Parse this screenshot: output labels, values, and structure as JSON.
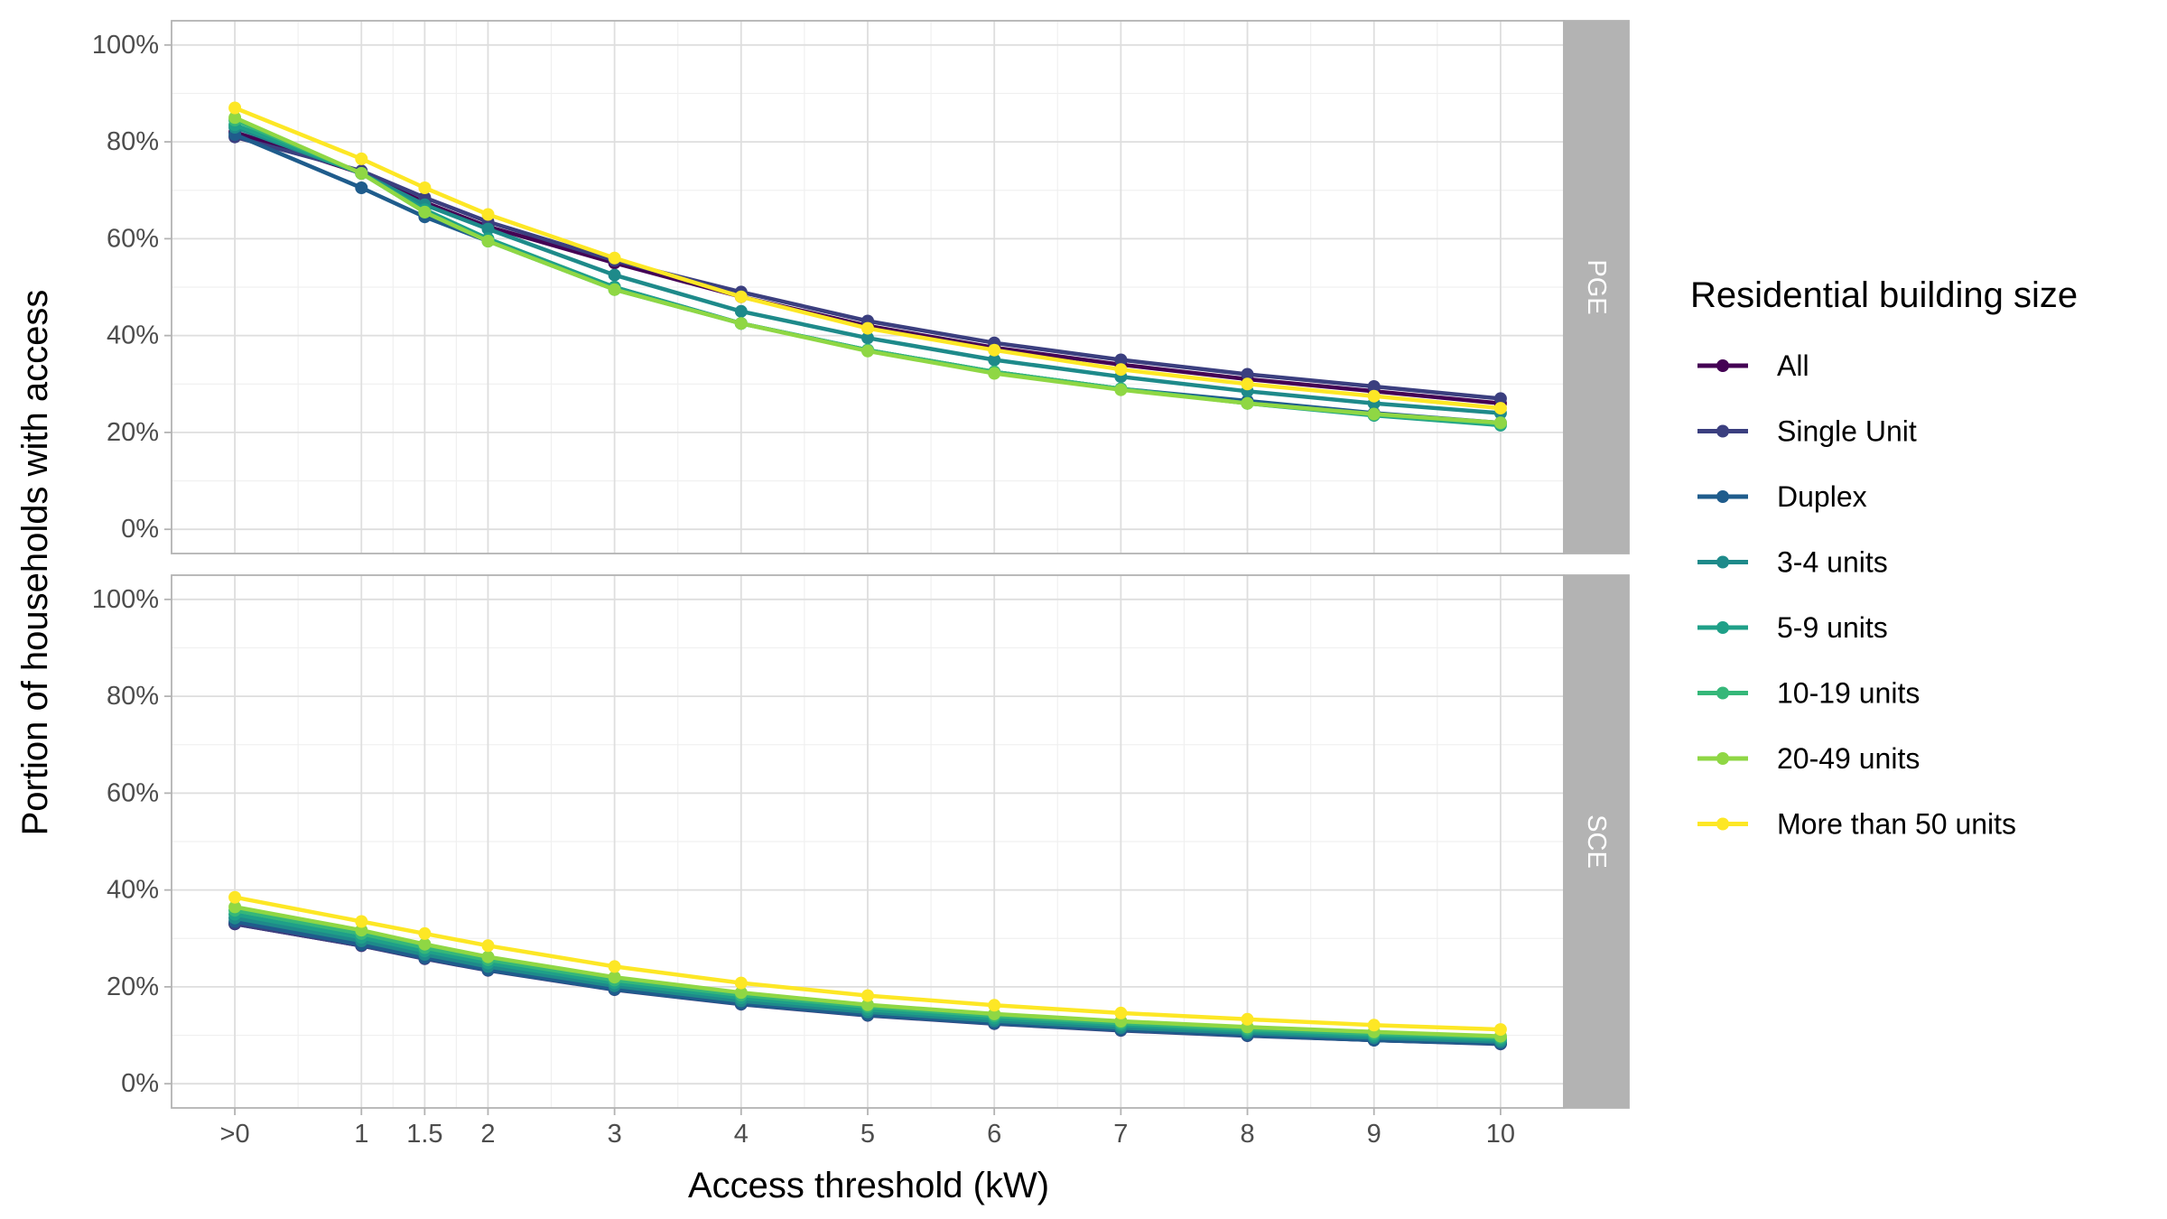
{
  "chart_data": {
    "type": "line",
    "xlabel": "Access threshold (kW)",
    "ylabel": "Portion of households with access",
    "x": [
      0,
      1,
      1.5,
      2,
      3,
      4,
      5,
      6,
      7,
      8,
      9,
      10
    ],
    "x_tick_labels": [
      ">0",
      "1",
      "1.5",
      "2",
      "3",
      "4",
      "5",
      "6",
      "7",
      "8",
      "9",
      "10"
    ],
    "y_tick_labels": [
      "0%",
      "20%",
      "40%",
      "60%",
      "80%",
      "100%"
    ],
    "ylim": [
      0,
      1
    ],
    "grid": true,
    "legend": {
      "title": "Residential building size",
      "placement": "right"
    },
    "facets": [
      {
        "name": "PGE",
        "series": [
          {
            "name": "All",
            "color": "#440154",
            "values": [
              0.82,
              0.735,
              0.675,
              0.625,
              0.55,
              0.48,
              0.42,
              0.375,
              0.34,
              0.31,
              0.285,
              0.26
            ]
          },
          {
            "name": "Single Unit",
            "color": "#3b3f7f",
            "values": [
              0.81,
              0.74,
              0.685,
              0.635,
              0.555,
              0.49,
              0.43,
              0.385,
              0.35,
              0.32,
              0.295,
              0.27
            ]
          },
          {
            "name": "Duplex",
            "color": "#1f5c8c",
            "values": [
              0.815,
              0.705,
              0.645,
              0.595,
              0.5,
              0.425,
              0.37,
              0.325,
              0.29,
              0.265,
              0.24,
              0.22
            ]
          },
          {
            "name": "3-4 units",
            "color": "#1e8a8a",
            "values": [
              0.83,
              0.735,
              0.67,
              0.62,
              0.525,
              0.45,
              0.395,
              0.35,
              0.315,
              0.285,
              0.26,
              0.24
            ]
          },
          {
            "name": "5-9 units",
            "color": "#1fa088",
            "values": [
              0.835,
              0.735,
              0.66,
              0.6,
              0.5,
              0.425,
              0.37,
              0.325,
              0.29,
              0.26,
              0.235,
              0.215
            ]
          },
          {
            "name": "10-19 units",
            "color": "#35b779",
            "values": [
              0.845,
              0.735,
              0.655,
              0.595,
              0.495,
              0.425,
              0.37,
              0.325,
              0.29,
              0.26,
              0.237,
              0.218
            ]
          },
          {
            "name": "20-49 units",
            "color": "#8fd744",
            "values": [
              0.85,
              0.735,
              0.655,
              0.595,
              0.495,
              0.425,
              0.368,
              0.322,
              0.288,
              0.26,
              0.238,
              0.22
            ]
          },
          {
            "name": "More than 50 units",
            "color": "#fde725",
            "values": [
              0.87,
              0.765,
              0.705,
              0.65,
              0.56,
              0.48,
              0.415,
              0.37,
              0.33,
              0.3,
              0.275,
              0.25
            ]
          }
        ]
      },
      {
        "name": "SCE",
        "series": [
          {
            "name": "All",
            "color": "#440154",
            "values": [
              0.33,
              0.285,
              0.26,
              0.235,
              0.195,
              0.165,
              0.142,
              0.125,
              0.112,
              0.1,
              0.09,
              0.083
            ]
          },
          {
            "name": "Single Unit",
            "color": "#3b3f7f",
            "values": [
              0.33,
              0.285,
              0.258,
              0.234,
              0.194,
              0.164,
              0.141,
              0.124,
              0.11,
              0.099,
              0.09,
              0.082
            ]
          },
          {
            "name": "Duplex",
            "color": "#1f5c8c",
            "values": [
              0.335,
              0.287,
              0.26,
              0.235,
              0.195,
              0.165,
              0.142,
              0.125,
              0.111,
              0.1,
              0.09,
              0.083
            ]
          },
          {
            "name": "3-4 units",
            "color": "#1e8a8a",
            "values": [
              0.342,
              0.295,
              0.267,
              0.242,
              0.202,
              0.171,
              0.148,
              0.13,
              0.116,
              0.105,
              0.095,
              0.087
            ]
          },
          {
            "name": "5-9 units",
            "color": "#1fa088",
            "values": [
              0.35,
              0.302,
              0.274,
              0.249,
              0.208,
              0.177,
              0.153,
              0.135,
              0.121,
              0.109,
              0.099,
              0.091
            ]
          },
          {
            "name": "10-19 units",
            "color": "#35b779",
            "values": [
              0.358,
              0.31,
              0.281,
              0.256,
              0.214,
              0.183,
              0.159,
              0.14,
              0.125,
              0.113,
              0.103,
              0.095
            ]
          },
          {
            "name": "20-49 units",
            "color": "#8fd744",
            "values": [
              0.365,
              0.317,
              0.288,
              0.262,
              0.22,
              0.188,
              0.163,
              0.144,
              0.129,
              0.117,
              0.107,
              0.098
            ]
          },
          {
            "name": "More than 50 units",
            "color": "#fde725",
            "values": [
              0.385,
              0.335,
              0.31,
              0.285,
              0.242,
              0.208,
              0.182,
              0.162,
              0.146,
              0.133,
              0.121,
              0.112
            ]
          }
        ]
      }
    ]
  }
}
